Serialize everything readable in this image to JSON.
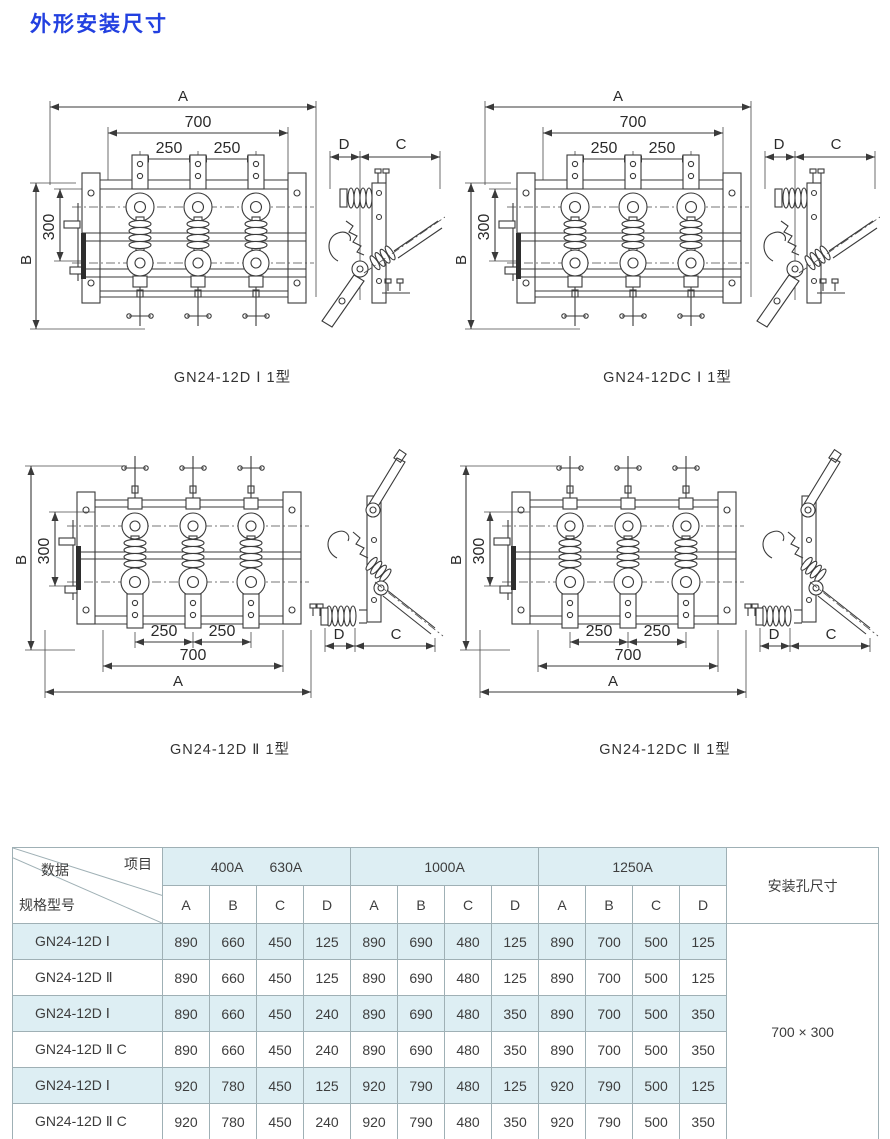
{
  "page": {
    "title": "外形安装尺寸"
  },
  "colors": {
    "title_accent": "#2240e0",
    "table_stripe": "#ddeef3",
    "table_border": "#9fb0b5",
    "drawing_line": "#3a3a3a"
  },
  "dims": {
    "a": "A",
    "b": "B",
    "c": "C",
    "d": "D",
    "width": "700",
    "pitch": "250",
    "height": "300"
  },
  "diagrams": [
    {
      "caption": "GN24-12D Ⅰ 1型"
    },
    {
      "caption": "GN24-12DC Ⅰ 1型"
    },
    {
      "caption": "GN24-12D Ⅱ 1型"
    },
    {
      "caption": "GN24-12DC Ⅱ 1型"
    }
  ],
  "table": {
    "corner": {
      "data_label": "数据",
      "item_label": "项目",
      "model_label": "规格型号"
    },
    "col_groups": [
      {
        "labels": [
          "400A",
          "630A"
        ]
      },
      {
        "labels": [
          "1000A"
        ]
      },
      {
        "labels": [
          "1250A"
        ]
      }
    ],
    "sub_cols": [
      "A",
      "B",
      "C",
      "D"
    ],
    "mount_header": "安装孔尺寸",
    "mount_value": "700 × 300",
    "rows": [
      {
        "model": "GN24-12D Ⅰ",
        "values": [
          890,
          660,
          450,
          125,
          890,
          690,
          480,
          125,
          890,
          700,
          500,
          125
        ]
      },
      {
        "model": "GN24-12D Ⅱ",
        "values": [
          890,
          660,
          450,
          125,
          890,
          690,
          480,
          125,
          890,
          700,
          500,
          125
        ]
      },
      {
        "model": "GN24-12D Ⅰ",
        "values": [
          890,
          660,
          450,
          240,
          890,
          690,
          480,
          350,
          890,
          700,
          500,
          350
        ]
      },
      {
        "model": "GN24-12D Ⅱ C",
        "values": [
          890,
          660,
          450,
          240,
          890,
          690,
          480,
          350,
          890,
          700,
          500,
          350
        ]
      },
      {
        "model": "GN24-12D Ⅰ",
        "values": [
          920,
          780,
          450,
          125,
          920,
          790,
          480,
          125,
          920,
          790,
          500,
          125
        ]
      },
      {
        "model": "GN24-12D Ⅱ C",
        "values": [
          920,
          780,
          450,
          240,
          920,
          790,
          480,
          350,
          920,
          790,
          500,
          350
        ]
      }
    ]
  }
}
